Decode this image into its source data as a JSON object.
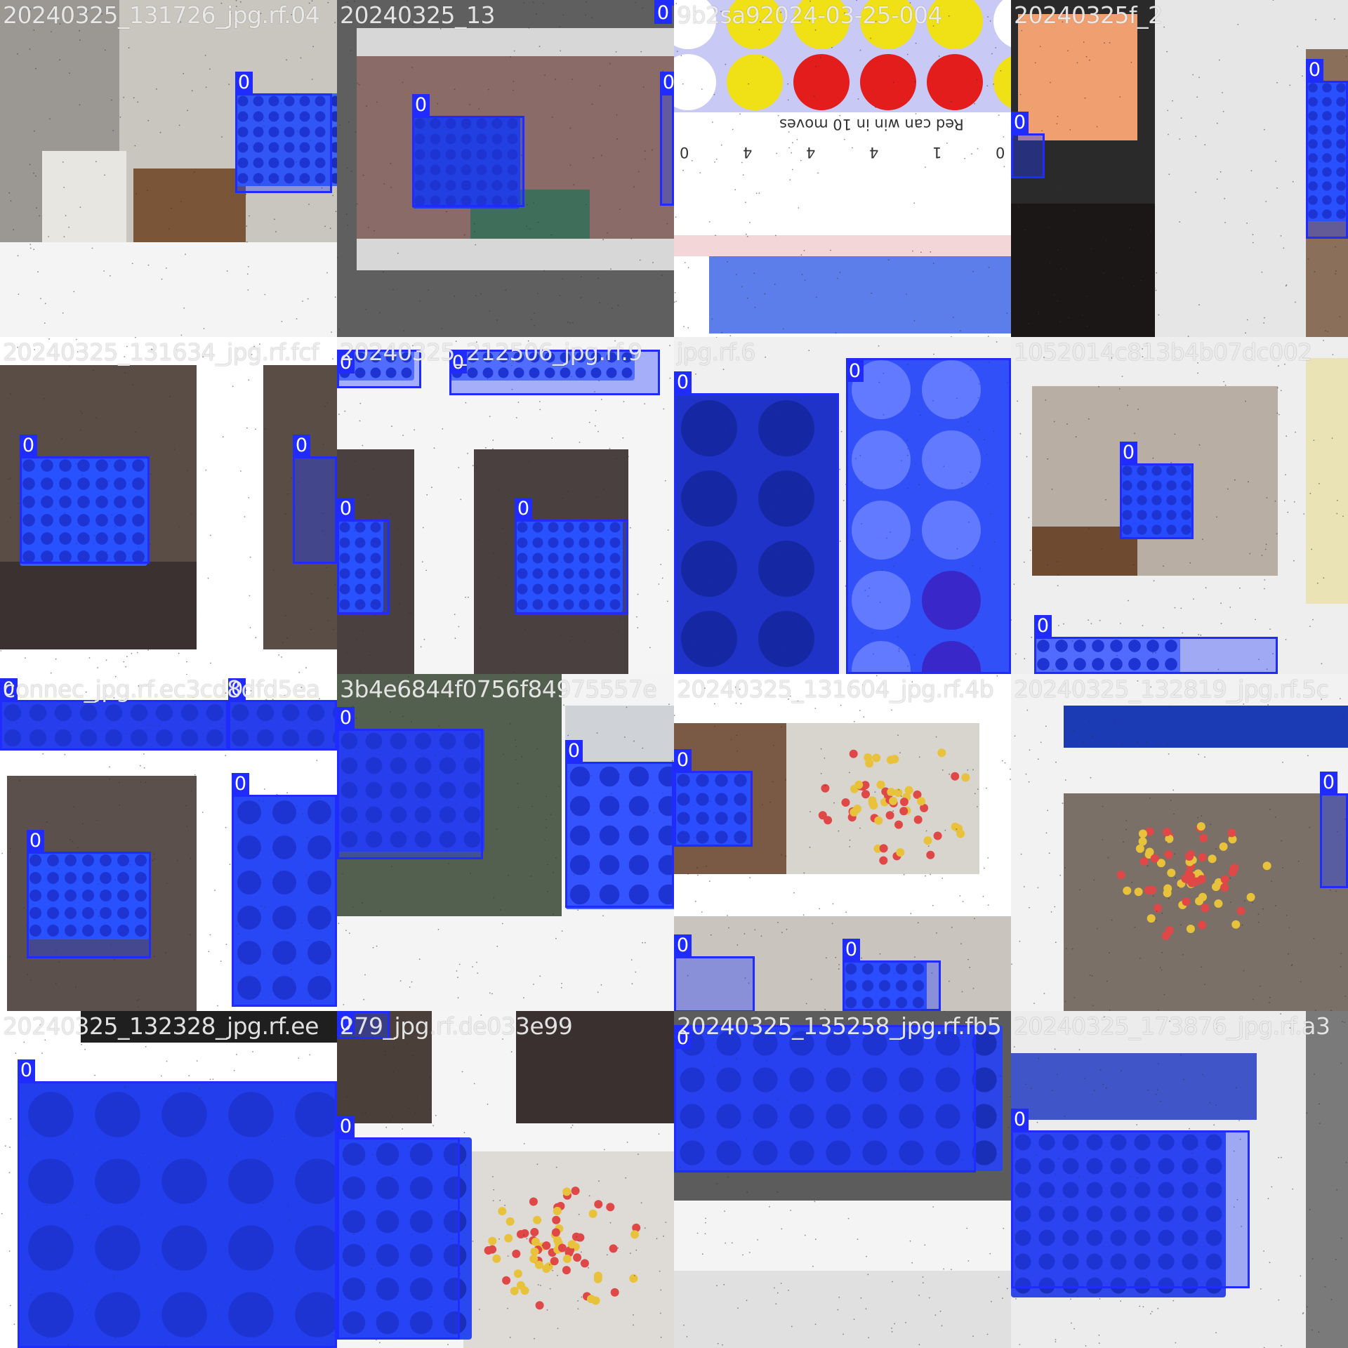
{
  "image": {
    "description_free": true
  },
  "colors": {
    "box_fill": "#2b3dff",
    "box_border": "#1f2bff",
    "label_bg": "#1f2bff",
    "label_fg": "#ffffff"
  },
  "tiles": [
    {
      "title": "20240325_131726_jpg.rf.04",
      "scene": "carpet",
      "boxes": [
        {
          "label": "0"
        }
      ]
    },
    {
      "title": "20240325_13",
      "scene": "table",
      "boxes": [
        {
          "label": "0"
        },
        {
          "label": "0"
        },
        {
          "label": "0"
        }
      ]
    },
    {
      "title": "9b2sa92024-03-25-004",
      "scene": "game",
      "caption": "Red can win in 10 moves",
      "scores": [
        "0",
        "4",
        "4",
        "4",
        "1",
        "0"
      ],
      "boxes": []
    },
    {
      "title": "20240325f_2",
      "scene": "kids",
      "boxes": [
        {
          "label": "0"
        },
        {
          "label": "0"
        }
      ]
    },
    {
      "title": "20240325_131634_jpg.rf.fcf",
      "scene": "room",
      "boxes": [
        {
          "label": "0"
        },
        {
          "label": "0"
        }
      ]
    },
    {
      "title": "20240325_212506_jpg.rf.9",
      "scene": "room2",
      "boxes": [
        {
          "label": "0"
        },
        {
          "label": "0"
        },
        {
          "label": "0"
        },
        {
          "label": "0"
        }
      ]
    },
    {
      "title": "jpg.rf.6",
      "scene": "closeup",
      "boxes": [
        {
          "label": "0"
        },
        {
          "label": "0"
        }
      ]
    },
    {
      "title": "1052014c813b4b07dc002",
      "scene": "carpet2",
      "boxes": [
        {
          "label": "0"
        },
        {
          "label": "0"
        }
      ]
    },
    {
      "title": "connec_jpg.rf.ec3cd8dfd5ea",
      "scene": "room3",
      "boxes": [
        {
          "label": "0"
        },
        {
          "label": "0"
        },
        {
          "label": "0"
        },
        {
          "label": "0"
        }
      ]
    },
    {
      "title": "3b4e6844f0756f84975557e",
      "scene": "garden",
      "boxes": [
        {
          "label": "0"
        },
        {
          "label": "0"
        }
      ]
    },
    {
      "title": "20240325_131604_jpg.rf.4b",
      "scene": "chips",
      "boxes": [
        {
          "label": "0"
        },
        {
          "label": "0"
        },
        {
          "label": "0"
        }
      ]
    },
    {
      "title": "20240325_132819_jpg.rf.5c",
      "scene": "chips2",
      "boxes": [
        {
          "label": "0"
        }
      ]
    },
    {
      "title": "20240325_132328_jpg.rf.ee",
      "scene": "bigclose",
      "boxes": [
        {
          "label": "0"
        }
      ]
    },
    {
      "title": "279_jpg.rf.de033e99",
      "scene": "chips3",
      "boxes": [
        {
          "label": "0"
        },
        {
          "label": "0"
        }
      ]
    },
    {
      "title": "20240325_135258_jpg.rf.fb5",
      "scene": "tilted",
      "boxes": [
        {
          "label": "0"
        }
      ]
    },
    {
      "title": "20240325_173876_jpg.rf.a3",
      "scene": "tilted2",
      "boxes": [
        {
          "label": "0"
        }
      ]
    }
  ]
}
